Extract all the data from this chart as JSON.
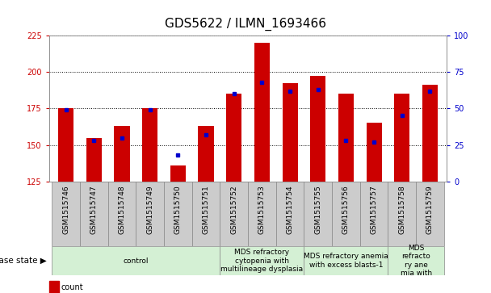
{
  "title": "GDS5622 / ILMN_1693466",
  "samples": [
    "GSM1515746",
    "GSM1515747",
    "GSM1515748",
    "GSM1515749",
    "GSM1515750",
    "GSM1515751",
    "GSM1515752",
    "GSM1515753",
    "GSM1515754",
    "GSM1515755",
    "GSM1515756",
    "GSM1515757",
    "GSM1515758",
    "GSM1515759"
  ],
  "count_values": [
    175,
    155,
    163,
    175,
    136,
    163,
    185,
    220,
    192,
    197,
    185,
    165,
    185,
    191
  ],
  "percentile_values": [
    49,
    28,
    30,
    49,
    18,
    32,
    60,
    68,
    62,
    63,
    28,
    27,
    45,
    62
  ],
  "ylim_left": [
    125,
    225
  ],
  "ylim_right": [
    0,
    100
  ],
  "yticks_left": [
    125,
    150,
    175,
    200,
    225
  ],
  "yticks_right": [
    0,
    25,
    50,
    75,
    100
  ],
  "bar_color": "#cc0000",
  "percentile_color": "#0000cc",
  "bg_color": "#ffffff",
  "xtick_bg": "#cccccc",
  "disease_groups": [
    {
      "label": "control",
      "start": 0,
      "end": 6
    },
    {
      "label": "MDS refractory\ncytopenia with\nmultilineage dysplasia",
      "start": 6,
      "end": 9
    },
    {
      "label": "MDS refractory anemia\nwith excess blasts-1",
      "start": 9,
      "end": 12
    },
    {
      "label": "MDS\nrefracto\nry ane\nmia with",
      "start": 12,
      "end": 14
    }
  ],
  "disease_box_color": "#d4f0d4",
  "disease_box_edge": "#888888",
  "bar_width": 0.55,
  "title_fontsize": 11,
  "tick_fontsize": 7,
  "xtick_fontsize": 6.5,
  "legend_fontsize": 7,
  "disease_fontsize": 6.5
}
